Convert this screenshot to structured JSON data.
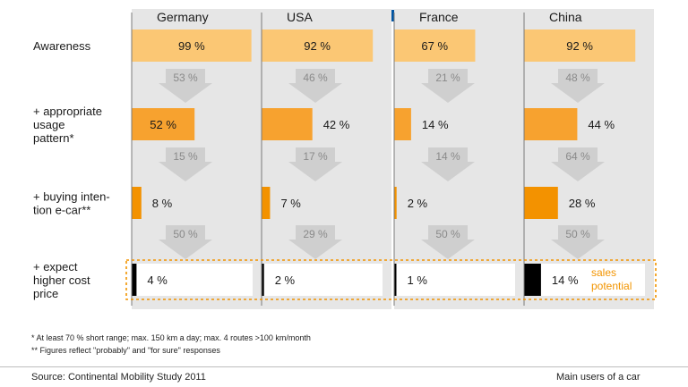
{
  "chart_data": {
    "type": "bar",
    "countries": [
      {
        "name": "Germany",
        "flag": "germany-flag"
      },
      {
        "name": "USA",
        "flag": "usa-flag"
      },
      {
        "name": "France",
        "flag": "france-flag"
      },
      {
        "name": "China",
        "flag": "china-flag"
      }
    ],
    "rows": [
      {
        "label": "Awareness",
        "values": [
          99,
          92,
          67,
          92
        ],
        "labels": [
          "99 %",
          "92 %",
          "67 %",
          "92 %"
        ]
      },
      {
        "label": "+ appropriate\nusage\npattern*",
        "values": [
          52,
          42,
          14,
          44
        ],
        "labels": [
          "52 %",
          "42 %",
          "14 %",
          "44 %"
        ]
      },
      {
        "label": "+ buying inten-\ntion e-car**",
        "values": [
          8,
          7,
          2,
          28
        ],
        "labels": [
          "8 %",
          "7 %",
          "2 %",
          "28 %"
        ]
      },
      {
        "label": "+ expect\nhigher cost\nprice",
        "values": [
          4,
          2,
          1,
          14
        ],
        "labels": [
          "4 %",
          "2 %",
          "1 %",
          "14 %"
        ]
      }
    ],
    "conversion_rates": [
      {
        "values": [
          53,
          46,
          21,
          48
        ],
        "labels": [
          "53 %",
          "46 %",
          "21 %",
          "48 %"
        ]
      },
      {
        "values": [
          15,
          17,
          14,
          64
        ],
        "labels": [
          "15 %",
          "17 %",
          "14 %",
          "64 %"
        ]
      },
      {
        "values": [
          50,
          29,
          50,
          50
        ],
        "labels": [
          "50 %",
          "29 %",
          "50 %",
          "50 %"
        ]
      }
    ],
    "annotation": "sales\npotential",
    "footnotes": [
      "* At least 70 % short range; max. 150 km a day; max. 4 routes >100 km/month",
      "** Figures reflect \"probably\" and \"for sure\" responses"
    ],
    "source": "Source: Continental Mobility Study 2011",
    "right_note": "Main users of a car"
  },
  "colors": {
    "panel": "#e6e6e6",
    "bar_light": "#fbc774",
    "bar_mid": "#f7a22f",
    "bar_dark": "#f39200",
    "bar_black": "#000000",
    "arrow": "#cfcfcf",
    "accent": "#f29400",
    "divider": "#7a7a7a"
  }
}
